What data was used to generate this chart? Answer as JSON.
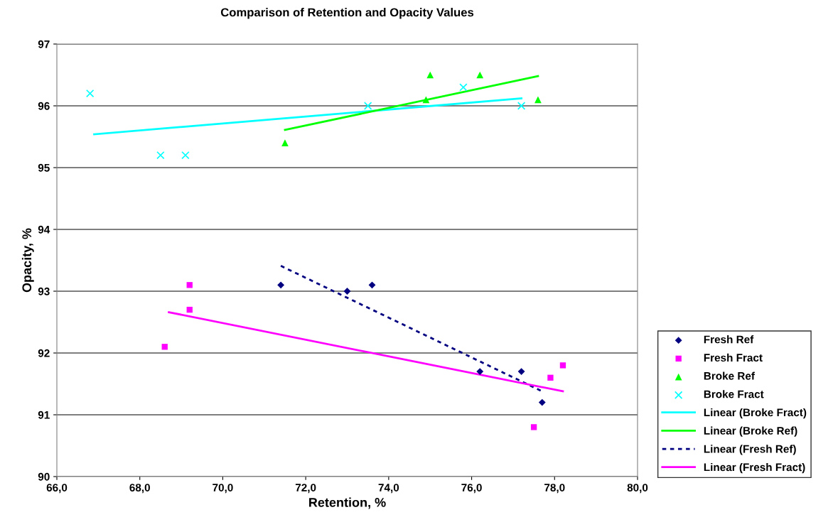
{
  "chart_data": {
    "type": "scatter",
    "title": "Comparison of Retention and Opacity Values",
    "xlabel": "Retention, %",
    "ylabel": "Opacity, %",
    "xlim": [
      66,
      80
    ],
    "xticks": [
      {
        "value": 66,
        "label": "66,0"
      },
      {
        "value": 68,
        "label": "68,0"
      },
      {
        "value": 70,
        "label": "70,0"
      },
      {
        "value": 72,
        "label": "72,0"
      },
      {
        "value": 74,
        "label": "74,0"
      },
      {
        "value": 76,
        "label": "76,0"
      },
      {
        "value": 78,
        "label": "78,0"
      },
      {
        "value": 80,
        "label": "80,0"
      }
    ],
    "ylim": [
      90,
      97
    ],
    "yticks": [
      90,
      91,
      92,
      93,
      94,
      95,
      96,
      97
    ],
    "grid": "y",
    "legend": "right",
    "series": [
      {
        "name": "Fresh Ref",
        "marker": "diamond",
        "color": "#000080",
        "x": [
          71.4,
          73.0,
          73.6,
          76.2,
          77.2,
          77.7
        ],
        "values": [
          93.1,
          93.0,
          93.1,
          91.7,
          91.7,
          91.2
        ]
      },
      {
        "name": "Fresh Fract",
        "marker": "square",
        "color": "#ff00ff",
        "x": [
          68.6,
          69.2,
          69.2,
          77.5,
          77.9,
          78.2
        ],
        "values": [
          92.1,
          93.1,
          92.7,
          90.8,
          91.6,
          91.8
        ]
      },
      {
        "name": "Broke Ref",
        "marker": "triangle",
        "color": "#00ff00",
        "x": [
          71.5,
          74.9,
          75.0,
          76.2,
          77.6
        ],
        "values": [
          95.4,
          96.1,
          96.5,
          96.5,
          96.1
        ]
      },
      {
        "name": "Broke Fract",
        "marker": "cross",
        "color": "#00ffff",
        "x": [
          66.8,
          68.5,
          69.1,
          73.5,
          75.8,
          77.2
        ],
        "values": [
          96.2,
          95.2,
          95.2,
          96.0,
          96.3,
          96.0
        ]
      },
      {
        "name": "Linear (Broke Fract)",
        "type": "line",
        "line_style": "solid",
        "color": "#00ffff",
        "x": [
          66.9,
          77.2
        ],
        "values": [
          95.54,
          96.12
        ]
      },
      {
        "name": "Linear (Broke Ref)",
        "type": "line",
        "line_style": "solid",
        "color": "#00ff00",
        "x": [
          71.5,
          77.6
        ],
        "values": [
          95.61,
          96.48
        ]
      },
      {
        "name": "Linear (Fresh Ref)",
        "type": "line",
        "line_style": "dashed",
        "color": "#000080",
        "x": [
          71.4,
          77.7
        ],
        "values": [
          93.41,
          91.38
        ]
      },
      {
        "name": "Linear (Fresh Fract)",
        "type": "line",
        "line_style": "solid",
        "color": "#ff00ff",
        "x": [
          68.7,
          78.2
        ],
        "values": [
          92.66,
          91.38
        ]
      }
    ]
  }
}
